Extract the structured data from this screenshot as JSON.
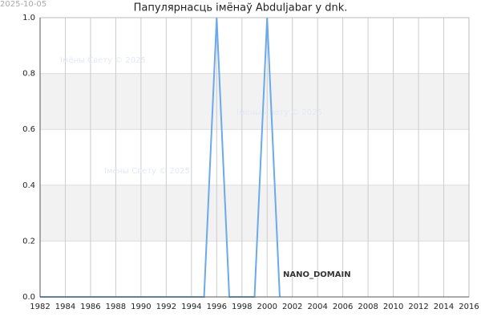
{
  "chart_data": {
    "type": "line",
    "title": "Папулярнасць імёнаў Abduljabar у dnk.",
    "date": "2025-10-05",
    "watermarks": [
      "Імёны Свету © 2025",
      "Імёны Свету © 2025",
      "Імёны Свету © 2025"
    ],
    "annotation": "NANO_DOMAIN",
    "x": [
      1982,
      1983,
      1984,
      1985,
      1986,
      1987,
      1988,
      1989,
      1990,
      1991,
      1992,
      1993,
      1994,
      1995,
      1996,
      1997,
      1998,
      1999,
      2000,
      2001
    ],
    "series": [
      {
        "color": "#6aaaea",
        "values": [
          0,
          0,
          0,
          0,
          0,
          0,
          0,
          0,
          0,
          0,
          0,
          0,
          0,
          0,
          1,
          0,
          0,
          0,
          1,
          0
        ]
      }
    ],
    "xlim": [
      1982,
      2016
    ],
    "xticks": [
      1982,
      1984,
      1986,
      1988,
      1990,
      1992,
      1994,
      1996,
      1998,
      2000,
      2002,
      2004,
      2006,
      2008,
      2010,
      2012,
      2014,
      2016
    ],
    "ylim": [
      0,
      1
    ],
    "yticks": [
      {
        "value": 0,
        "label": "0.0"
      },
      0.2,
      0.4,
      0.6,
      0.8,
      {
        "value": 1,
        "label": "1.0"
      }
    ],
    "grid": true
  }
}
